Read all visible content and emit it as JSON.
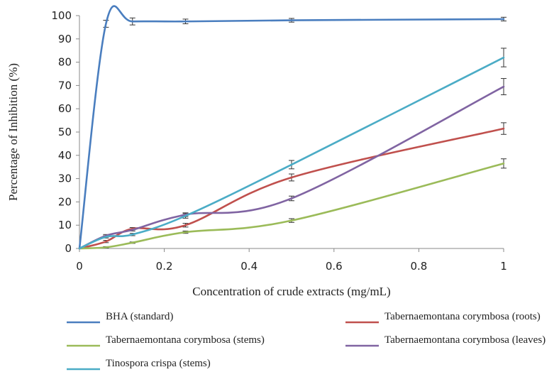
{
  "chart_data": {
    "type": "line",
    "xlabel": "Concentration of crude extracts (mg/mL)",
    "ylabel": "Percentage of Inhibition (%)",
    "xlim": [
      0,
      1
    ],
    "ylim": [
      0,
      100
    ],
    "x_ticks": [
      "0",
      "0.2",
      "0.4",
      "0.6",
      "0.8",
      "1"
    ],
    "y_ticks": [
      "0",
      "10",
      "20",
      "30",
      "40",
      "50",
      "60",
      "70",
      "80",
      "90",
      "100"
    ],
    "grid": false,
    "legend_position": "bottom",
    "x": [
      0,
      0.0625,
      0.125,
      0.25,
      0.5,
      1
    ],
    "series": [
      {
        "name": "BHA (standard)",
        "color": "#4a7ebf",
        "values": [
          0,
          96.5,
          97.5,
          97.5,
          98,
          98.5
        ],
        "errors": [
          0,
          1.5,
          1.5,
          1,
          0.8,
          0.8
        ]
      },
      {
        "name": "Tabernaemontana corymbosa (roots)",
        "color": "#c0504d",
        "values": [
          0,
          3,
          8.5,
          10,
          30.5,
          51.5
        ],
        "errors": [
          0,
          0.5,
          0.5,
          0.8,
          1.5,
          2.5
        ]
      },
      {
        "name": "Tabernaemontana corymbosa (stems)",
        "color": "#9bbb59",
        "values": [
          0,
          0.5,
          2.5,
          7,
          12,
          36.5
        ],
        "errors": [
          0,
          0.3,
          0.3,
          0.5,
          0.8,
          2
        ]
      },
      {
        "name": "Tabernaemontana corymbosa (leaves)",
        "color": "#8064a2",
        "values": [
          0,
          5.5,
          8,
          14.5,
          21.5,
          69.5
        ],
        "errors": [
          0,
          0.5,
          0.5,
          0.8,
          1,
          3.5
        ]
      },
      {
        "name": "Tinospora crispa (stems)",
        "color": "#4bacc6",
        "values": [
          0,
          5,
          6,
          14,
          36,
          82
        ],
        "errors": [
          0,
          0.5,
          0.5,
          1,
          1.8,
          4
        ]
      }
    ]
  }
}
